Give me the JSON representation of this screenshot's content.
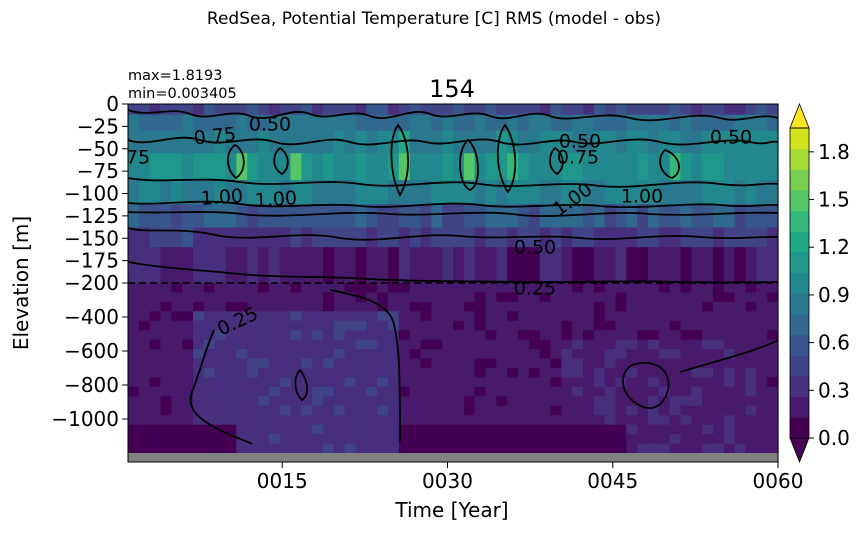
{
  "chart_data": {
    "type": "heatmap",
    "suptitle": "RedSea, Potential Temperature [C] RMS (model - obs)",
    "title": "154",
    "stats": {
      "max": "max=1.8193",
      "min": "min=0.003405"
    },
    "xlabel": "Time [Year]",
    "ylabel": "Elevation [m]",
    "x_ticks": [
      "0015",
      "0030",
      "0045",
      "0060"
    ],
    "x_range": [
      1,
      60
    ],
    "y_ticks_upper": [
      "0",
      "−25",
      "−50",
      "−75",
      "−100",
      "−125",
      "−150",
      "−175",
      "−200"
    ],
    "y_ticks_lower": [
      "−400",
      "−600",
      "−800",
      "−1000"
    ],
    "upper_range_m": [
      0,
      -200
    ],
    "lower_range_m": [
      -200,
      -1200
    ],
    "split_line_m": -200,
    "colorbar": {
      "ticks": [
        "0.0",
        "0.3",
        "0.6",
        "0.9",
        "1.2",
        "1.5",
        "1.8"
      ],
      "range": [
        0,
        1.95
      ],
      "step": 0.15,
      "extend": "both",
      "colors": [
        "#440154",
        "#481a6c",
        "#472f7d",
        "#414487",
        "#39568c",
        "#31688e",
        "#2a788e",
        "#23888e",
        "#1f988b",
        "#22a884",
        "#35b779",
        "#54c568",
        "#7ad151",
        "#a5db36",
        "#d2e21b"
      ],
      "under_color": "#440154",
      "over_color": "#fde725"
    },
    "contour_levels": [
      "0.25",
      "0.50",
      "0.75",
      "1.00"
    ],
    "contour_labels": [
      {
        "text": "0.50"
      },
      {
        "text": "0.75"
      },
      {
        "text": "75"
      },
      {
        "text": "1.00"
      },
      {
        "text": "1.00"
      },
      {
        "text": "0.50"
      },
      {
        "text": "0.75"
      },
      {
        "text": "1.00"
      },
      {
        "text": "1.00"
      },
      {
        "text": "0.50"
      },
      {
        "text": "0.50"
      },
      {
        "text": "0.25"
      },
      {
        "text": "0.25"
      }
    ],
    "band_rms_upper": [
      {
        "depth_m": [
          0,
          -12
        ],
        "rms": 0.55
      },
      {
        "depth_m": [
          -12,
          -30
        ],
        "rms": 0.9
      },
      {
        "depth_m": [
          -30,
          -55
        ],
        "rms": 1.05
      },
      {
        "depth_m": [
          -55,
          -85
        ],
        "rms": 1.2
      },
      {
        "depth_m": [
          -85,
          -112
        ],
        "rms": 1.05
      },
      {
        "depth_m": [
          -112,
          -138
        ],
        "rms": 0.72
      },
      {
        "depth_m": [
          -138,
          -160
        ],
        "rms": 0.48
      },
      {
        "depth_m": [
          -160,
          -200
        ],
        "rms": 0.25
      }
    ],
    "band_rms_lower_note": "deep layer mostly 0.1–0.45"
  }
}
